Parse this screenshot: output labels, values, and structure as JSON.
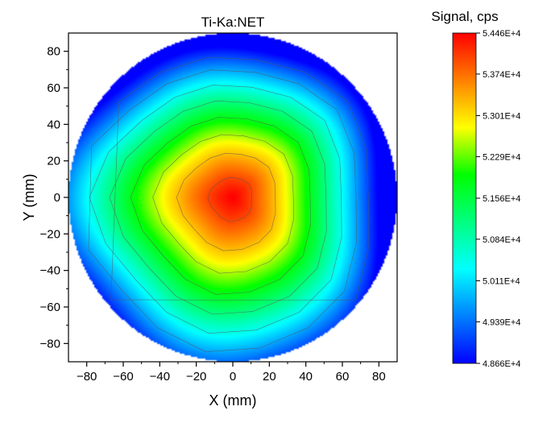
{
  "chart_data": {
    "type": "heatmap",
    "subtype": "filled-contour wafer map",
    "title": "Ti-Ka:NET",
    "xlabel": "X (mm)",
    "ylabel": "Y (mm)",
    "xlim": [
      -90,
      90
    ],
    "ylim": [
      -90,
      90
    ],
    "xticks": [
      -80,
      -60,
      -40,
      -20,
      0,
      20,
      40,
      60,
      80
    ],
    "yticks": [
      -80,
      -60,
      -40,
      -20,
      0,
      20,
      40,
      60,
      80
    ],
    "xtick_labels": [
      "−80",
      "−60",
      "−40",
      "−20",
      "0",
      "20",
      "40",
      "60",
      "80"
    ],
    "ytick_labels": [
      "−80",
      "−60",
      "−40",
      "−20",
      "0",
      "20",
      "40",
      "60",
      "80"
    ],
    "grid": false,
    "peak": {
      "x": 0,
      "y": 0,
      "value": 54460
    },
    "colorbar": {
      "title": "Signal, cps",
      "min": 48660,
      "max": 54460,
      "ticks": [
        54460,
        53740,
        53010,
        52290,
        51560,
        50840,
        50110,
        49390,
        48660
      ],
      "tick_labels": [
        "5.446E+4",
        "5.374E+4",
        "5.301E+4",
        "5.229E+4",
        "5.156E+4",
        "5.084E+4",
        "5.011E+4",
        "4.939E+4",
        "4.866E+4"
      ],
      "colors": [
        "#0000ff",
        "#0080ff",
        "#00ffff",
        "#00ff80",
        "#00ff00",
        "#ffff00",
        "#ff8000",
        "#ff0000"
      ]
    }
  }
}
